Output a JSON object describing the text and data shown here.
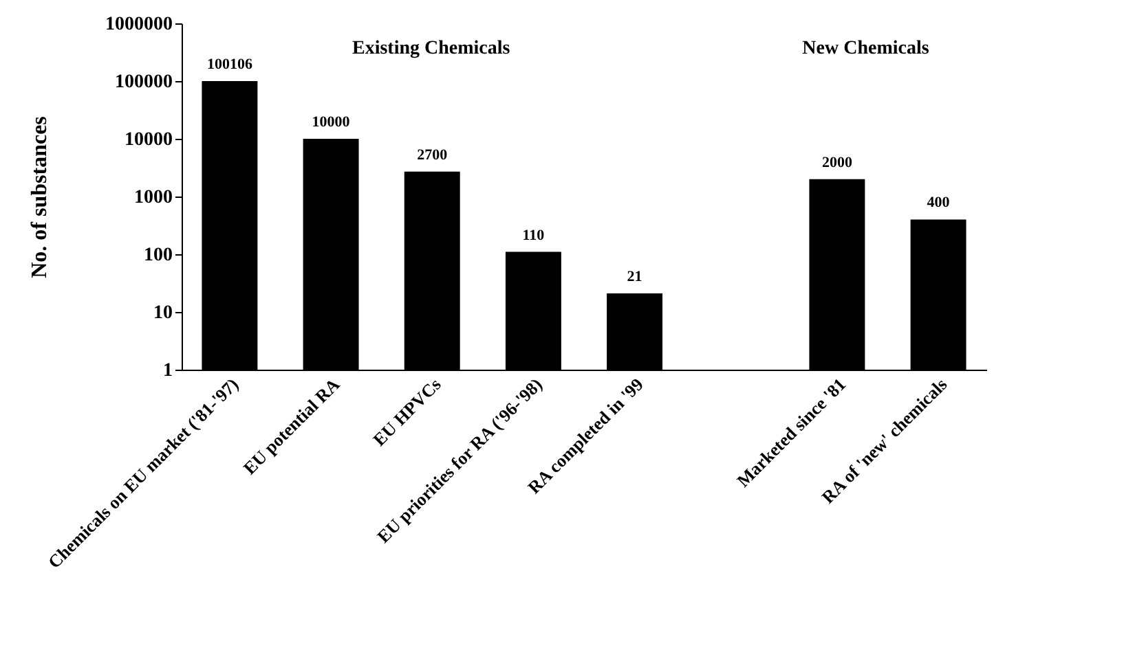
{
  "chart_data": {
    "type": "bar",
    "ylabel": "No. of substances",
    "categories": [
      "Chemicals on EU market ('81-'97)",
      "EU potential RA",
      "EU HPVCs",
      "EU priorities for RA ('96-'98)",
      "RA completed in '99",
      null,
      "Marketed since '81",
      "RA of 'new' chemicals"
    ],
    "values": [
      100106,
      10000,
      2700,
      110,
      21,
      null,
      2000,
      400
    ],
    "color": "#000000",
    "log": "y",
    "ylim": [
      1,
      1000000
    ],
    "yticks": [
      1,
      10,
      100,
      1000,
      10000,
      100000,
      1000000
    ],
    "data_labels": true,
    "grid": false,
    "annotations": [
      "Existing Chemicals",
      "New Chemicals"
    ]
  }
}
